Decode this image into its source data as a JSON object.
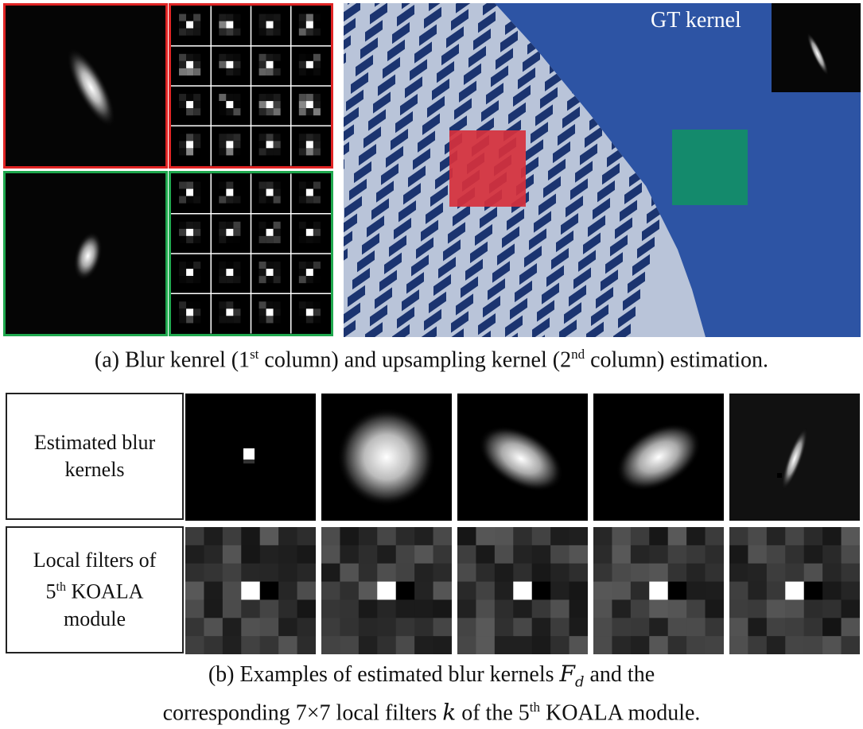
{
  "figure": {
    "part_a": {
      "gt_kernel_label": "GT kernel",
      "caption": {
        "pre": "(a) Blur kenrel (1",
        "sup1": "st",
        "mid": " column) and upsampling kernel (2",
        "sup2": "nd",
        "post": " column) estimation."
      },
      "colors": {
        "red_box": "#e02424",
        "green_box": "#1fa84e",
        "red_patch": "#d6303c",
        "green_patch": "#148a6c",
        "sky": "#2d54a4"
      }
    },
    "part_b": {
      "row1_label": "Estimated blur kernels",
      "row2_label": {
        "line1": "Local filters of",
        "line2_sup": "th",
        "line2_num": "5",
        "line2_rest": " KOALA",
        "line3": "module"
      },
      "caption": {
        "line1_pre": "(b) Examples of estimated blur kernels ",
        "line1_math": "F",
        "line1_math_sub": "d",
        "line1_post": " and the",
        "line2_pre": "corresponding 7×7 local filters ",
        "line2_math": "k",
        "line2_mid": " of the 5",
        "line2_sup": "th",
        "line2_post": " KOALA module."
      }
    }
  }
}
